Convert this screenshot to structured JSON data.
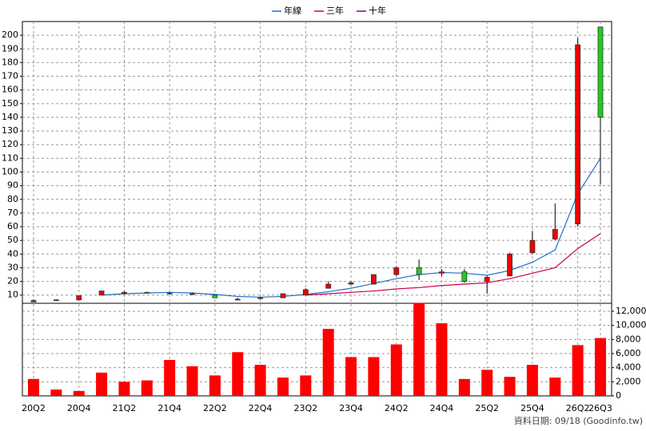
{
  "chart_data": {
    "type": "candlestick",
    "categories": [
      "20Q2",
      null,
      "20Q4",
      null,
      "21Q2",
      null,
      "21Q4",
      null,
      "22Q2",
      null,
      "22Q4",
      null,
      "23Q2",
      null,
      "23Q4",
      null,
      "24Q2",
      null,
      "24Q4",
      null,
      "25Q2",
      null,
      "25Q4",
      null,
      "26Q2",
      "26Q3"
    ],
    "open": [
      5,
      6,
      6.5,
      10,
      11,
      12,
      11,
      11,
      10,
      7,
      7.5,
      8,
      10,
      15,
      18,
      18,
      25,
      30,
      26,
      27,
      20,
      24,
      41,
      51,
      62,
      206
    ],
    "high": [
      7,
      7,
      9.5,
      13,
      13,
      12.5,
      12,
      12,
      10.5,
      8,
      8.5,
      11,
      15,
      20,
      20,
      25,
      31,
      36,
      29,
      29,
      24,
      41,
      57,
      77,
      198,
      206
    ],
    "low": [
      5,
      6,
      6.5,
      10,
      10.5,
      11.5,
      10.5,
      10.5,
      8,
      6.5,
      7,
      8,
      10,
      15,
      17.5,
      18,
      24,
      21,
      24,
      19,
      11,
      24,
      40,
      50,
      60,
      91
    ],
    "close": [
      6,
      6.5,
      9.5,
      13,
      12,
      11.5,
      11.5,
      11,
      8,
      7,
      8,
      11,
      14,
      18,
      19,
      25,
      30,
      25,
      27,
      20,
      23,
      40,
      50,
      58,
      193,
      140
    ],
    "up_color": "#ee0000",
    "down_color": "#22cc22",
    "series": [
      {
        "name": "年線",
        "color": "#1f6fc8",
        "values": [
          null,
          null,
          null,
          10,
          11,
          11.5,
          12,
          11.5,
          10.5,
          9,
          8.5,
          9,
          10.5,
          12.5,
          15,
          18.5,
          22,
          25,
          26.5,
          26,
          24.5,
          28,
          34,
          43,
          84,
          110
        ]
      },
      {
        "name": "三年",
        "color": "#cc0044",
        "values": [
          null,
          null,
          null,
          null,
          null,
          null,
          null,
          null,
          null,
          null,
          null,
          null,
          10,
          11,
          12,
          13,
          14.5,
          15.5,
          17,
          18,
          19,
          22,
          26,
          30,
          44,
          55
        ]
      },
      {
        "name": "十年",
        "color": "#880088",
        "values": [
          null,
          null,
          null,
          null,
          null,
          null,
          null,
          null,
          null,
          null,
          null,
          null,
          null,
          null,
          null,
          null,
          null,
          null,
          null,
          null,
          null,
          null,
          null,
          null,
          null,
          null
        ]
      }
    ],
    "ylim": [
      4,
      210
    ],
    "yticks": [
      10,
      20,
      30,
      40,
      50,
      60,
      70,
      80,
      90,
      100,
      110,
      120,
      130,
      140,
      150,
      160,
      170,
      180,
      190,
      200
    ],
    "volume": {
      "color": "#ff0000",
      "values": [
        2400,
        900,
        700,
        3300,
        2000,
        2200,
        5100,
        4200,
        2900,
        6200,
        4400,
        2600,
        2900,
        9500,
        5500,
        5500,
        7300,
        13200,
        10300,
        2400,
        3700,
        2700,
        4400,
        2600,
        7200,
        8200
      ]
    },
    "y2lim": [
      0,
      13130
    ],
    "y2ticks": [
      0,
      {
        "value": 2000,
        "label": "2,000"
      },
      {
        "value": 4000,
        "label": "4,000"
      },
      {
        "value": 6000,
        "label": "6,000"
      },
      {
        "value": 8000,
        "label": "8,000"
      },
      {
        "value": 10000,
        "label": "10,000"
      },
      {
        "value": 12000,
        "label": "12,000"
      }
    ],
    "grid": true,
    "legend": "top",
    "footnote": "資料日期: 09/18  (Goodinfo.tw)"
  }
}
